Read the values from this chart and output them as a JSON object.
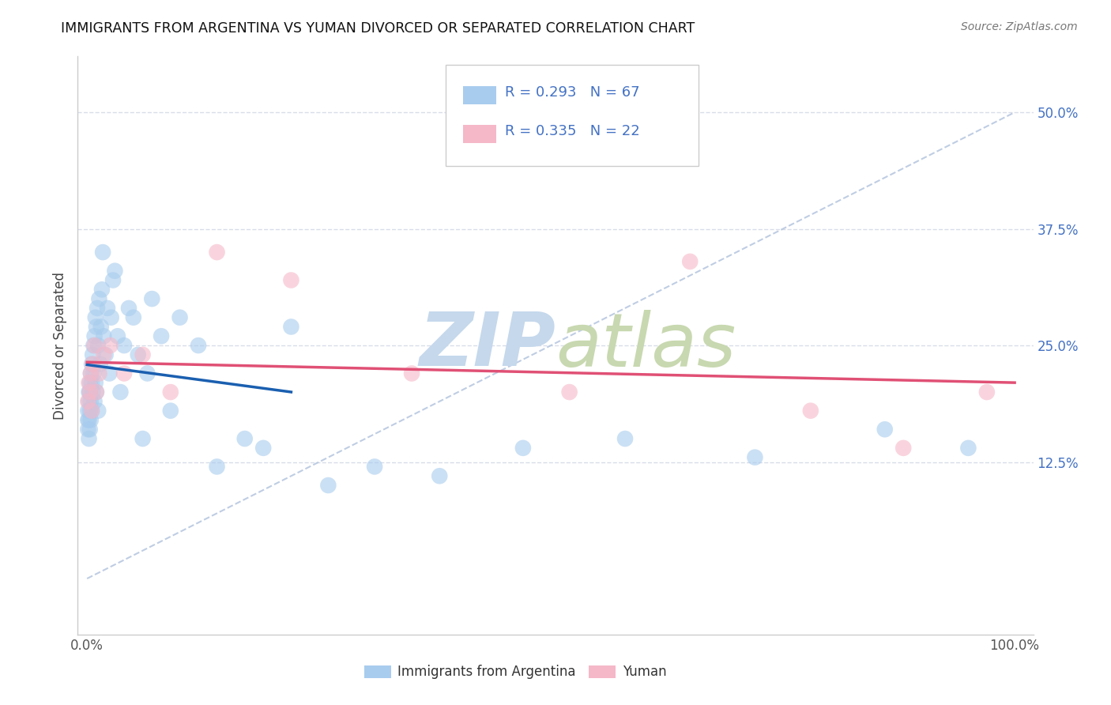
{
  "title": "IMMIGRANTS FROM ARGENTINA VS YUMAN DIVORCED OR SEPARATED CORRELATION CHART",
  "source": "Source: ZipAtlas.com",
  "ylabel": "Divorced or Separated",
  "xlim": [
    -0.01,
    1.02
  ],
  "ylim": [
    -0.06,
    0.56
  ],
  "xticks": [
    0.0,
    1.0
  ],
  "xticklabels": [
    "0.0%",
    "100.0%"
  ],
  "yticks": [
    0.125,
    0.25,
    0.375,
    0.5
  ],
  "yticklabels": [
    "12.5%",
    "25.0%",
    "37.5%",
    "50.0%"
  ],
  "legend_label1": "Immigrants from Argentina",
  "legend_label2": "Yuman",
  "R1": 0.293,
  "N1": 67,
  "R2": 0.335,
  "N2": 22,
  "color_blue": "#a8ccee",
  "color_pink": "#f5b8c8",
  "color_blue_line": "#1a5fb0",
  "color_pink_line": "#e05075",
  "color_ref_line": "#b8c8e0",
  "color_grid": "#d8dde8",
  "color_ytick": "#4472c4",
  "blue_x": [
    0.001,
    0.001,
    0.001,
    0.002,
    0.002,
    0.002,
    0.002,
    0.003,
    0.003,
    0.003,
    0.003,
    0.004,
    0.004,
    0.004,
    0.005,
    0.005,
    0.005,
    0.006,
    0.006,
    0.007,
    0.007,
    0.008,
    0.008,
    0.009,
    0.009,
    0.01,
    0.01,
    0.011,
    0.012,
    0.012,
    0.013,
    0.014,
    0.015,
    0.016,
    0.017,
    0.018,
    0.02,
    0.022,
    0.024,
    0.026,
    0.028,
    0.03,
    0.033,
    0.036,
    0.04,
    0.045,
    0.05,
    0.055,
    0.06,
    0.065,
    0.07,
    0.08,
    0.09,
    0.1,
    0.12,
    0.14,
    0.17,
    0.19,
    0.22,
    0.26,
    0.31,
    0.38,
    0.47,
    0.58,
    0.72,
    0.86,
    0.95
  ],
  "blue_y": [
    0.18,
    0.17,
    0.16,
    0.2,
    0.19,
    0.17,
    0.15,
    0.21,
    0.2,
    0.18,
    0.16,
    0.22,
    0.19,
    0.17,
    0.23,
    0.21,
    0.18,
    0.24,
    0.2,
    0.25,
    0.22,
    0.26,
    0.19,
    0.28,
    0.21,
    0.27,
    0.2,
    0.29,
    0.25,
    0.18,
    0.3,
    0.23,
    0.27,
    0.31,
    0.35,
    0.26,
    0.24,
    0.29,
    0.22,
    0.28,
    0.32,
    0.33,
    0.26,
    0.2,
    0.25,
    0.29,
    0.28,
    0.24,
    0.15,
    0.22,
    0.3,
    0.26,
    0.18,
    0.28,
    0.25,
    0.12,
    0.15,
    0.14,
    0.27,
    0.1,
    0.12,
    0.11,
    0.14,
    0.15,
    0.13,
    0.16,
    0.14
  ],
  "pink_x": [
    0.001,
    0.002,
    0.003,
    0.004,
    0.005,
    0.006,
    0.008,
    0.01,
    0.013,
    0.018,
    0.025,
    0.04,
    0.06,
    0.09,
    0.14,
    0.22,
    0.35,
    0.52,
    0.65,
    0.78,
    0.88,
    0.97
  ],
  "pink_y": [
    0.19,
    0.21,
    0.2,
    0.22,
    0.18,
    0.23,
    0.25,
    0.2,
    0.22,
    0.24,
    0.25,
    0.22,
    0.24,
    0.2,
    0.35,
    0.32,
    0.22,
    0.2,
    0.34,
    0.18,
    0.14,
    0.2
  ]
}
